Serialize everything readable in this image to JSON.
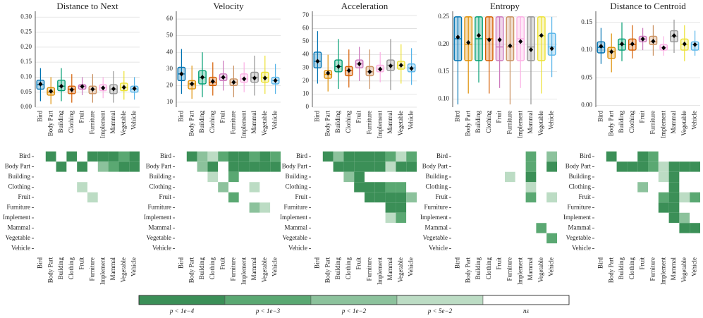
{
  "chart_data": [
    {
      "type": "box",
      "title": "Distance to Next",
      "categories": [
        "Bird",
        "Body Part",
        "Building",
        "Clothing",
        "Fruit",
        "Furniture",
        "Implement",
        "Mammal",
        "Vegetable",
        "Vehicle"
      ],
      "colors": [
        "#0173b2",
        "#de8f05",
        "#029e73",
        "#d55e00",
        "#cc78bc",
        "#ca9161",
        "#fbafe4",
        "#949494",
        "#ece133",
        "#56b4e9"
      ],
      "median": [
        0.075,
        0.05,
        0.07,
        0.06,
        0.07,
        0.06,
        0.065,
        0.06,
        0.065,
        0.06
      ],
      "q1": [
        0.06,
        0.04,
        0.055,
        0.045,
        0.06,
        0.045,
        0.055,
        0.045,
        0.055,
        0.05
      ],
      "q3": [
        0.09,
        0.065,
        0.09,
        0.07,
        0.075,
        0.07,
        0.075,
        0.075,
        0.08,
        0.07
      ],
      "whislo": [
        0.02,
        0.01,
        0.02,
        0.015,
        0.04,
        0.015,
        0.03,
        0.015,
        0.025,
        0.025
      ],
      "whishi": [
        0.13,
        0.1,
        0.13,
        0.11,
        0.1,
        0.11,
        0.1,
        0.12,
        0.12,
        0.1
      ],
      "mean": [
        0.077,
        0.053,
        0.07,
        0.058,
        0.069,
        0.06,
        0.064,
        0.061,
        0.066,
        0.062
      ],
      "ylim": [
        0,
        0.31
      ],
      "yticks": [
        {
          "value": 0,
          "label": "0.00"
        },
        0.05,
        {
          "value": 0.1,
          "label": "0.10"
        },
        0.15,
        {
          "value": 0.2,
          "label": "0.20"
        },
        0.25,
        {
          "value": 0.3,
          "label": "0.30"
        }
      ],
      "grid": true,
      "significance": [
        [
          4,
          0,
          4,
          0,
          4,
          0,
          0,
          0,
          1,
          0
        ],
        [
          4,
          4,
          0,
          4,
          0,
          4,
          2,
          1,
          0,
          0
        ],
        [
          4,
          4,
          4,
          4,
          4,
          4,
          4,
          4,
          4,
          4
        ],
        [
          4,
          4,
          4,
          4,
          3,
          4,
          4,
          4,
          4,
          4
        ],
        [
          4,
          4,
          4,
          4,
          4,
          3,
          4,
          4,
          4,
          4
        ],
        [
          4,
          4,
          4,
          4,
          4,
          4,
          4,
          4,
          4,
          4
        ],
        [
          4,
          4,
          4,
          4,
          4,
          4,
          4,
          4,
          4,
          4
        ],
        [
          4,
          4,
          4,
          4,
          4,
          4,
          4,
          4,
          4,
          4
        ],
        [
          4,
          4,
          4,
          4,
          4,
          4,
          4,
          4,
          4,
          4
        ],
        [
          4,
          4,
          4,
          4,
          4,
          4,
          4,
          4,
          4,
          4
        ]
      ]
    },
    {
      "type": "box",
      "title": "Velocity",
      "categories": [
        "Bird",
        "Body Part",
        "Building",
        "Clothing",
        "Fruit",
        "Furniture",
        "Implement",
        "Mammal",
        "Vegetable",
        "Vehicle"
      ],
      "colors": [
        "#0173b2",
        "#de8f05",
        "#029e73",
        "#d55e00",
        "#cc78bc",
        "#ca9161",
        "#fbafe4",
        "#949494",
        "#ece133",
        "#56b4e9"
      ],
      "median": [
        27,
        21,
        25,
        22,
        25,
        22,
        24,
        25,
        25,
        23
      ],
      "q1": [
        23,
        18,
        21,
        20,
        23,
        20,
        22,
        22,
        22,
        21
      ],
      "q3": [
        31,
        23,
        29,
        25,
        27,
        24,
        27,
        28,
        28,
        25
      ],
      "whislo": [
        15,
        12,
        13,
        14,
        17,
        13,
        16,
        14,
        15,
        15
      ],
      "whishi": [
        42,
        32,
        40,
        34,
        35,
        32,
        34,
        38,
        38,
        33
      ],
      "mean": [
        27,
        21,
        25,
        22.5,
        25,
        22,
        24,
        24.5,
        24.5,
        23
      ],
      "ylim": [
        7,
        63
      ],
      "yticks": [
        10,
        20,
        30,
        40,
        50,
        60
      ],
      "grid": true,
      "significance": [
        [
          4,
          0,
          2,
          3,
          1,
          0,
          0,
          1,
          0,
          1
        ],
        [
          4,
          4,
          2,
          0,
          4,
          0,
          0,
          0,
          0,
          0
        ],
        [
          4,
          4,
          4,
          3,
          4,
          1,
          4,
          4,
          4,
          4
        ],
        [
          4,
          4,
          4,
          4,
          2,
          4,
          4,
          3,
          4,
          4
        ],
        [
          4,
          4,
          4,
          4,
          4,
          1,
          4,
          4,
          4,
          4
        ],
        [
          4,
          4,
          4,
          4,
          4,
          4,
          4,
          2,
          3,
          4
        ],
        [
          4,
          4,
          4,
          4,
          4,
          4,
          4,
          4,
          4,
          4
        ],
        [
          4,
          4,
          4,
          4,
          4,
          4,
          4,
          4,
          4,
          4
        ],
        [
          4,
          4,
          4,
          4,
          4,
          4,
          4,
          4,
          4,
          4
        ],
        [
          4,
          4,
          4,
          4,
          4,
          4,
          4,
          4,
          4,
          4
        ]
      ]
    },
    {
      "type": "box",
      "title": "Acceleration",
      "categories": [
        "Bird",
        "Body Part",
        "Building",
        "Clothing",
        "Fruit",
        "Furniture",
        "Implement",
        "Mammal",
        "Vegetable",
        "Vehicle"
      ],
      "colors": [
        "#0173b2",
        "#de8f05",
        "#029e73",
        "#d55e00",
        "#cc78bc",
        "#ca9161",
        "#fbafe4",
        "#949494",
        "#ece133",
        "#56b4e9"
      ],
      "median": [
        35,
        25,
        31,
        28,
        33,
        27,
        29,
        32,
        32,
        30
      ],
      "q1": [
        30,
        22,
        27,
        24,
        30,
        24,
        27,
        28,
        29,
        27
      ],
      "q3": [
        42,
        28,
        36,
        31,
        36,
        31,
        32,
        36,
        35,
        33
      ],
      "whislo": [
        18,
        12,
        14,
        15,
        20,
        14,
        19,
        13,
        18,
        17
      ],
      "whishi": [
        58,
        40,
        52,
        44,
        46,
        44,
        42,
        52,
        48,
        45
      ],
      "mean": [
        35,
        26,
        31,
        28,
        33,
        27,
        29,
        31.5,
        32,
        29.5
      ],
      "ylim": [
        0,
        71
      ],
      "yticks": [
        0,
        10,
        20,
        30,
        40,
        50,
        60,
        70
      ],
      "grid": true,
      "significance": [
        [
          4,
          0,
          2,
          0,
          0,
          0,
          0,
          1,
          3,
          1
        ],
        [
          4,
          4,
          0,
          0,
          0,
          0,
          0,
          3,
          0,
          0
        ],
        [
          4,
          4,
          4,
          2,
          0,
          4,
          4,
          4,
          4,
          4
        ],
        [
          4,
          4,
          4,
          4,
          0,
          0,
          0,
          1,
          1,
          4
        ],
        [
          4,
          4,
          4,
          4,
          4,
          0,
          0,
          0,
          0,
          2
        ],
        [
          4,
          4,
          4,
          4,
          4,
          4,
          4,
          0,
          0,
          4
        ],
        [
          4,
          4,
          4,
          4,
          4,
          4,
          4,
          3,
          1,
          4
        ],
        [
          4,
          4,
          4,
          4,
          4,
          4,
          4,
          4,
          4,
          4
        ],
        [
          4,
          4,
          4,
          4,
          4,
          4,
          4,
          4,
          4,
          4
        ],
        [
          4,
          4,
          4,
          4,
          4,
          4,
          4,
          4,
          4,
          4
        ]
      ]
    },
    {
      "type": "box",
      "title": "Entropy",
      "categories": [
        "Bird",
        "Body Part",
        "Building",
        "Clothing",
        "Fruit",
        "Furniture",
        "Implement",
        "Mammal",
        "Vegetable",
        "Vehicle"
      ],
      "colors": [
        "#0173b2",
        "#de8f05",
        "#029e73",
        "#d55e00",
        "#cc78bc",
        "#ca9161",
        "#fbafe4",
        "#949494",
        "#ece133",
        "#56b4e9"
      ],
      "median": [
        0.21,
        0.2,
        0.21,
        0.21,
        0.195,
        0.195,
        0.21,
        0.195,
        0.215,
        0.195
      ],
      "q1": [
        0.17,
        0.17,
        0.17,
        0.17,
        0.17,
        0.17,
        0.17,
        0.17,
        0.17,
        0.18
      ],
      "q3": [
        0.25,
        0.25,
        0.25,
        0.25,
        0.25,
        0.25,
        0.25,
        0.25,
        0.25,
        0.22
      ],
      "whislo": [
        0.09,
        0.11,
        0.13,
        0.11,
        0.12,
        0.09,
        0.12,
        0.09,
        0.11,
        0.14
      ],
      "whishi": [
        0.25,
        0.25,
        0.25,
        0.25,
        0.25,
        0.25,
        0.25,
        0.25,
        0.25,
        0.25
      ],
      "mean": [
        0.213,
        0.203,
        0.216,
        0.208,
        0.208,
        0.197,
        0.205,
        0.19,
        0.216,
        0.192
      ],
      "ylim": [
        0.085,
        0.255
      ],
      "yticks": [
        {
          "value": 0.1,
          "label": "0.10"
        },
        0.15,
        {
          "value": 0.2,
          "label": "0.20"
        },
        0.25
      ],
      "grid": true,
      "significance": [
        [
          4,
          4,
          4,
          4,
          4,
          4,
          4,
          1,
          4,
          2
        ],
        [
          4,
          4,
          4,
          4,
          4,
          4,
          4,
          1,
          4,
          0
        ],
        [
          4,
          4,
          4,
          4,
          4,
          3,
          4,
          0,
          4,
          4
        ],
        [
          4,
          4,
          4,
          4,
          4,
          4,
          4,
          3,
          4,
          4
        ],
        [
          4,
          4,
          4,
          4,
          4,
          4,
          4,
          1,
          4,
          3
        ],
        [
          4,
          4,
          4,
          4,
          4,
          4,
          4,
          4,
          4,
          4
        ],
        [
          4,
          4,
          4,
          4,
          4,
          4,
          4,
          4,
          4,
          4
        ],
        [
          4,
          4,
          4,
          4,
          4,
          4,
          4,
          4,
          1,
          4
        ],
        [
          4,
          4,
          4,
          4,
          4,
          4,
          4,
          4,
          4,
          1
        ],
        [
          4,
          4,
          4,
          4,
          4,
          4,
          4,
          4,
          4,
          4
        ]
      ]
    },
    {
      "type": "box",
      "title": "Distance to Centroid",
      "categories": [
        "Bird",
        "Body Part",
        "Building",
        "Clothing",
        "Fruit",
        "Furniture",
        "Implement",
        "Mammal",
        "Vegetable",
        "Vehicle"
      ],
      "colors": [
        "#0173b2",
        "#de8f05",
        "#029e73",
        "#d55e00",
        "#cc78bc",
        "#ca9161",
        "#fbafe4",
        "#949494",
        "#ece133",
        "#56b4e9"
      ],
      "median": [
        0.105,
        0.097,
        0.11,
        0.11,
        0.12,
        0.115,
        0.105,
        0.125,
        0.11,
        0.11
      ],
      "q1": [
        0.095,
        0.085,
        0.1,
        0.1,
        0.115,
        0.11,
        0.1,
        0.115,
        0.1,
        0.1
      ],
      "q3": [
        0.115,
        0.105,
        0.12,
        0.12,
        0.125,
        0.125,
        0.11,
        0.135,
        0.12,
        0.115
      ],
      "whislo": [
        0.075,
        0.06,
        0.08,
        0.085,
        0.1,
        0.09,
        0.09,
        0.095,
        0.08,
        0.09
      ],
      "whishi": [
        0.14,
        0.13,
        0.15,
        0.145,
        0.14,
        0.145,
        0.125,
        0.155,
        0.145,
        0.135
      ],
      "mean": [
        0.107,
        0.097,
        0.111,
        0.111,
        0.12,
        0.116,
        0.104,
        0.126,
        0.111,
        0.11
      ],
      "ylim": [
        -0.003,
        0.165
      ],
      "yticks": [
        {
          "value": 0,
          "label": "0.00"
        },
        0.05,
        {
          "value": 0.1,
          "label": "0.10"
        },
        0.15
      ],
      "grid": true,
      "significance": [
        [
          4,
          0,
          4,
          4,
          0,
          1,
          4,
          4,
          4,
          4
        ],
        [
          4,
          4,
          0,
          0,
          0,
          1,
          3,
          0,
          0,
          0
        ],
        [
          4,
          4,
          4,
          4,
          4,
          4,
          3,
          0,
          4,
          4
        ],
        [
          4,
          4,
          4,
          4,
          2,
          4,
          4,
          0,
          4,
          4
        ],
        [
          4,
          4,
          4,
          4,
          4,
          4,
          1,
          0,
          3,
          1
        ],
        [
          4,
          4,
          4,
          4,
          4,
          4,
          0,
          0,
          4,
          4
        ],
        [
          4,
          4,
          4,
          4,
          4,
          4,
          4,
          0,
          2,
          4
        ],
        [
          4,
          4,
          4,
          4,
          4,
          4,
          4,
          4,
          0,
          0
        ],
        [
          4,
          4,
          4,
          4,
          4,
          4,
          4,
          4,
          4,
          4
        ],
        [
          4,
          4,
          4,
          4,
          4,
          4,
          4,
          4,
          4,
          4
        ]
      ]
    }
  ],
  "legend": {
    "labels": [
      "p < 1e−4",
      "p < 1e−3",
      "p < 1e−2",
      "p < 5e−2",
      "ns"
    ],
    "colors": [
      "#3b8f57",
      "#5aa872",
      "#8cc29c",
      "#bcdcc4",
      "#ffffff"
    ]
  }
}
